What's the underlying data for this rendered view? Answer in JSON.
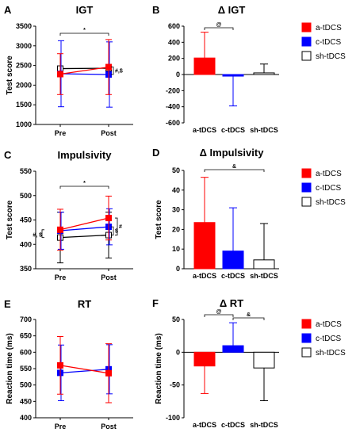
{
  "colors": {
    "a": "#ff0000",
    "c": "#0000ff",
    "sh": "#ffffff"
  },
  "chart_data": [
    {
      "id": "A",
      "letter": "A",
      "type": "line",
      "title": "IGT",
      "xlabel": "",
      "ylabel": "Test score",
      "categories": [
        "Pre",
        "Post"
      ],
      "ylim": [
        1000,
        3500
      ],
      "yticks": [
        "1000",
        "1500",
        "2000",
        "2500",
        "3000",
        "3500"
      ],
      "series": [
        {
          "name": "a-tDCS",
          "values": [
            2280,
            2460
          ],
          "err": [
            520,
            700
          ]
        },
        {
          "name": "c-tDCS",
          "values": [
            2290,
            2270
          ],
          "err": [
            840,
            830
          ]
        },
        {
          "name": "sh-tDCS",
          "values": [
            2420,
            2430
          ],
          "err": [
            0,
            0
          ]
        }
      ],
      "annotations": {
        "star": "*",
        "side": "#,$"
      }
    },
    {
      "id": "B",
      "letter": "B",
      "type": "bar",
      "title": "Δ IGT",
      "xlabel": "",
      "ylabel": "",
      "categories": [
        "a-tDCS",
        "c-tDCS",
        "sh-tDCS"
      ],
      "ylim": [
        -600,
        600
      ],
      "yticks": [
        "-600",
        "-400",
        "-200",
        "0",
        "200",
        "400",
        "600"
      ],
      "values": [
        205,
        -20,
        20
      ],
      "err": [
        320,
        370,
        110
      ],
      "annotations": {
        "bracket": "@"
      }
    },
    {
      "id": "C",
      "letter": "C",
      "type": "line",
      "title": "Impulsivity",
      "xlabel": "",
      "ylabel": "Test score",
      "categories": [
        "Pre",
        "Post"
      ],
      "ylim": [
        350,
        550
      ],
      "yticks": [
        "350",
        "400",
        "450",
        "500",
        "550"
      ],
      "series": [
        {
          "name": "a-tDCS",
          "values": [
            430,
            454
          ],
          "err": [
            42,
            45
          ]
        },
        {
          "name": "c-tDCS",
          "values": [
            428,
            436
          ],
          "err": [
            38,
            37
          ]
        },
        {
          "name": "sh-tDCS",
          "values": [
            414,
            419
          ],
          "err": [
            52,
            47
          ]
        }
      ],
      "annotations": {
        "star": "*",
        "left": "#, $",
        "side1": "$",
        "side2": "#"
      }
    },
    {
      "id": "D",
      "letter": "D",
      "type": "bar",
      "title": "Δ Impulsivity",
      "xlabel": "",
      "ylabel": "Test score",
      "categories": [
        "a-tDCS",
        "c-tDCS",
        "sh-tDCS"
      ],
      "ylim": [
        0,
        50
      ],
      "yticks": [
        "0",
        "10",
        "20",
        "30",
        "40",
        "50"
      ],
      "values": [
        23.5,
        9,
        4.5
      ],
      "err": [
        23,
        22,
        18.5
      ],
      "annotations": {
        "bracket": "&"
      }
    },
    {
      "id": "E",
      "letter": "E",
      "type": "line",
      "title": "RT",
      "xlabel": "",
      "ylabel": "Reaction time (ms)",
      "categories": [
        "Pre",
        "Post"
      ],
      "ylim": [
        400,
        700
      ],
      "yticks": [
        "400",
        "450",
        "500",
        "550",
        "600",
        "650",
        "700"
      ],
      "series": [
        {
          "name": "a-tDCS",
          "values": [
            560,
            536
          ],
          "err": [
            88,
            90
          ]
        },
        {
          "name": "c-tDCS",
          "values": [
            537,
            548
          ],
          "err": [
            85,
            75
          ]
        }
      ]
    },
    {
      "id": "F",
      "letter": "F",
      "type": "bar",
      "title": "Δ RT",
      "xlabel": "",
      "ylabel": "Reaction time (ms)",
      "categories": [
        "a-tDCS",
        "c-tDCS",
        "sh-tDCS"
      ],
      "ylim": [
        -100,
        50
      ],
      "yticks": [
        "-100",
        "-50",
        "0",
        "50"
      ],
      "values": [
        -21,
        10,
        -24
      ],
      "err": [
        42,
        35,
        50
      ],
      "annotations": {
        "bracket1": "@",
        "bracket2": "&"
      }
    }
  ]
}
